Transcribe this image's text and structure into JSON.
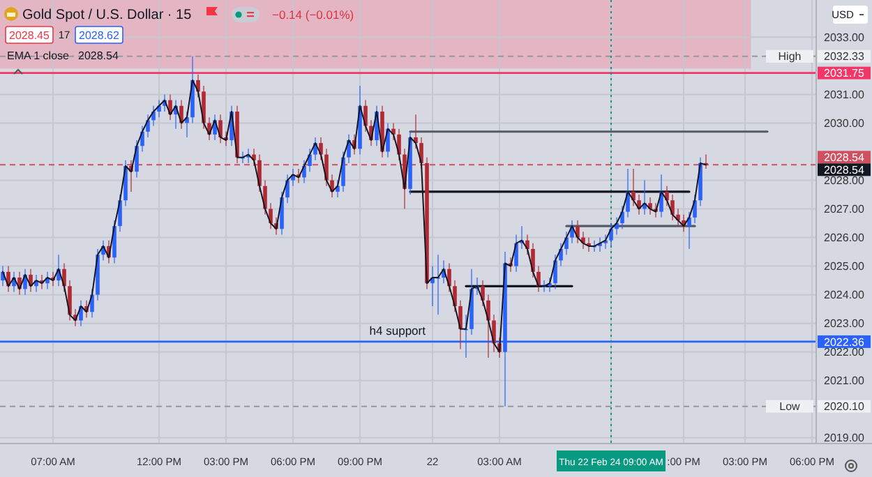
{
  "chart_data": {
    "type": "candlestick",
    "title": "Gold Spot / U.S. Dollar · 15",
    "annotations": [
      "−0.14 (−0.01%)",
      "2028.45",
      "17",
      "2028.62",
      "2028.54",
      "USD",
      {
        "text": "h4 support",
        "y": 2022.36
      },
      {
        "text": "High",
        "y": 2032.33
      },
      {
        "text": "Low",
        "y": 2020.1
      }
    ],
    "categories": [
      null,
      null,
      null,
      null,
      null,
      null,
      null,
      null,
      null,
      "07:00 AM",
      null,
      null,
      null,
      null,
      null,
      null,
      null,
      null,
      null,
      null,
      null,
      null,
      null,
      null,
      null,
      null,
      null,
      null,
      "12:00 PM",
      null,
      null,
      null,
      null,
      null,
      null,
      null,
      null,
      null,
      null,
      null,
      "03:00 PM",
      null,
      null,
      null,
      null,
      null,
      null,
      null,
      null,
      null,
      null,
      null,
      "06:00 PM",
      null,
      null,
      null,
      null,
      null,
      null,
      null,
      null,
      null,
      null,
      null,
      "09:00 PM",
      null,
      null,
      null,
      null,
      null,
      null,
      null,
      null,
      null,
      null,
      null,
      null,
      "22",
      null,
      null,
      null,
      null,
      null,
      null,
      null,
      null,
      null,
      null,
      null,
      "03:00 AM",
      null,
      null,
      null,
      null,
      null,
      null,
      null,
      null,
      null,
      null,
      null,
      null,
      null,
      null,
      null,
      null,
      null,
      null,
      null,
      "Thu 22 Feb 24   09:00 AM",
      null,
      null,
      null,
      null,
      null,
      null,
      null,
      null,
      null,
      null,
      null,
      null,
      ":00 PM",
      null,
      null,
      null,
      null,
      null,
      null,
      null,
      null,
      null,
      null,
      "03:00 PM",
      null,
      null,
      null,
      null,
      null,
      null,
      null,
      null,
      null,
      null,
      null,
      "06:00 PM"
    ],
    "ohlc": [
      [
        2024.5,
        2025.0,
        2024.3,
        2024.8
      ],
      [
        2024.8,
        2025.0,
        2024.1,
        2024.3
      ],
      [
        2024.3,
        2024.8,
        2024.1,
        2024.6
      ],
      [
        2024.6,
        2024.8,
        2024.0,
        2024.2
      ],
      [
        2024.2,
        2024.9,
        2024.0,
        2024.7
      ],
      [
        2024.7,
        2024.9,
        2024.1,
        2024.3
      ],
      [
        2024.3,
        2024.7,
        2024.1,
        2024.5
      ],
      [
        2024.5,
        2024.7,
        2024.2,
        2024.4
      ],
      [
        2024.4,
        2024.8,
        2024.2,
        2024.6
      ],
      [
        2024.6,
        2024.8,
        2024.3,
        2024.5
      ],
      [
        2024.5,
        2025.4,
        2024.3,
        2024.9
      ],
      [
        2024.9,
        2025.1,
        2024.1,
        2024.3
      ],
      [
        2024.3,
        2024.5,
        2023.1,
        2023.3
      ],
      [
        2023.3,
        2023.5,
        2022.9,
        2023.1
      ],
      [
        2023.1,
        2023.8,
        2022.9,
        2023.6
      ],
      [
        2023.6,
        2023.8,
        2023.2,
        2023.4
      ],
      [
        2023.4,
        2024.2,
        2023.2,
        2024.0
      ],
      [
        2024.0,
        2025.6,
        2023.8,
        2025.4
      ],
      [
        2025.4,
        2025.9,
        2025.2,
        2025.7
      ],
      [
        2025.7,
        2025.9,
        2025.1,
        2025.3
      ],
      [
        2025.3,
        2026.6,
        2025.1,
        2026.4
      ],
      [
        2026.4,
        2027.5,
        2026.2,
        2027.3
      ],
      [
        2027.3,
        2028.7,
        2027.1,
        2028.5
      ],
      [
        2028.5,
        2028.7,
        2027.6,
        2028.3
      ],
      [
        2028.3,
        2029.4,
        2028.1,
        2029.2
      ],
      [
        2029.2,
        2029.9,
        2029.0,
        2029.7
      ],
      [
        2029.7,
        2030.3,
        2029.5,
        2030.1
      ],
      [
        2030.1,
        2030.6,
        2029.9,
        2030.4
      ],
      [
        2030.4,
        2030.8,
        2030.2,
        2030.6
      ],
      [
        2030.6,
        2031.0,
        2030.4,
        2030.8
      ],
      [
        2030.8,
        2031.0,
        2030.1,
        2030.3
      ],
      [
        2030.3,
        2030.8,
        2029.8,
        2030.6
      ],
      [
        2030.6,
        2030.8,
        2029.8,
        2030.0
      ],
      [
        2030.0,
        2030.4,
        2029.5,
        2030.2
      ],
      [
        2030.2,
        2032.33,
        2030.0,
        2031.5
      ],
      [
        2031.5,
        2031.7,
        2030.9,
        2031.1
      ],
      [
        2031.1,
        2031.3,
        2029.8,
        2030.0
      ],
      [
        2030.0,
        2030.2,
        2029.4,
        2029.6
      ],
      [
        2029.6,
        2030.3,
        2029.4,
        2030.1
      ],
      [
        2030.1,
        2030.3,
        2029.3,
        2029.5
      ],
      [
        2029.5,
        2029.7,
        2029.2,
        2029.4
      ],
      [
        2029.4,
        2030.6,
        2029.2,
        2030.4
      ],
      [
        2030.4,
        2030.6,
        2028.6,
        2028.8
      ],
      [
        2028.8,
        2029.0,
        2028.6,
        2028.8
      ],
      [
        2028.8,
        2029.1,
        2028.6,
        2028.9
      ],
      [
        2028.9,
        2029.1,
        2028.5,
        2028.7
      ],
      [
        2028.7,
        2028.9,
        2027.6,
        2027.8
      ],
      [
        2027.8,
        2028.0,
        2026.8,
        2027.0
      ],
      [
        2027.0,
        2027.2,
        2026.3,
        2026.5
      ],
      [
        2026.5,
        2026.7,
        2026.1,
        2026.3
      ],
      [
        2026.3,
        2027.6,
        2026.1,
        2027.4
      ],
      [
        2027.4,
        2028.2,
        2027.2,
        2028.0
      ],
      [
        2028.0,
        2028.4,
        2027.8,
        2028.2
      ],
      [
        2028.2,
        2028.4,
        2027.9,
        2028.1
      ],
      [
        2028.1,
        2028.7,
        2027.9,
        2028.5
      ],
      [
        2028.5,
        2029.1,
        2028.3,
        2028.9
      ],
      [
        2028.9,
        2029.5,
        2028.7,
        2029.3
      ],
      [
        2029.3,
        2029.5,
        2028.7,
        2028.9
      ],
      [
        2028.9,
        2029.1,
        2027.8,
        2028.0
      ],
      [
        2028.0,
        2028.2,
        2027.4,
        2027.6
      ],
      [
        2027.6,
        2028.0,
        2027.4,
        2027.8
      ],
      [
        2027.8,
        2029.0,
        2027.6,
        2028.8
      ],
      [
        2028.8,
        2029.6,
        2028.6,
        2029.4
      ],
      [
        2029.4,
        2029.6,
        2028.9,
        2029.1
      ],
      [
        2029.1,
        2031.3,
        2028.9,
        2030.6
      ],
      [
        2030.6,
        2030.8,
        2029.7,
        2029.9
      ],
      [
        2029.9,
        2030.1,
        2029.2,
        2029.4
      ],
      [
        2029.4,
        2030.6,
        2029.2,
        2030.4
      ],
      [
        2030.4,
        2030.6,
        2028.8,
        2029.0
      ],
      [
        2029.0,
        2030.0,
        2028.8,
        2029.8
      ],
      [
        2029.8,
        2030.0,
        2029.4,
        2029.6
      ],
      [
        2029.6,
        2029.8,
        2028.7,
        2028.9
      ],
      [
        2028.9,
        2029.1,
        2027.0,
        2027.7
      ],
      [
        2027.7,
        2029.7,
        2027.5,
        2029.5
      ],
      [
        2029.5,
        2030.3,
        2029.1,
        2029.3
      ],
      [
        2029.3,
        2029.5,
        2028.4,
        2028.6
      ],
      [
        2028.6,
        2028.8,
        2024.2,
        2024.4
      ],
      [
        2024.4,
        2025.0,
        2023.6,
        2024.6
      ],
      [
        2024.6,
        2025.4,
        2023.3,
        2024.6
      ],
      [
        2024.6,
        2025.2,
        2024.4,
        2024.9
      ],
      [
        2024.9,
        2025.1,
        2024.1,
        2024.3
      ],
      [
        2024.3,
        2024.5,
        2023.4,
        2023.6
      ],
      [
        2023.6,
        2023.8,
        2022.1,
        2022.8
      ],
      [
        2022.8,
        2023.3,
        2021.8,
        2022.8
      ],
      [
        2022.8,
        2024.9,
        2022.6,
        2024.2
      ],
      [
        2024.2,
        2024.6,
        2024.0,
        2024.3
      ],
      [
        2024.3,
        2024.5,
        2023.6,
        2023.8
      ],
      [
        2023.8,
        2024.0,
        2021.8,
        2023.1
      ],
      [
        2023.1,
        2023.3,
        2022.0,
        2022.3
      ],
      [
        2022.3,
        2022.5,
        2021.8,
        2022.0
      ],
      [
        2022.0,
        2025.5,
        2020.1,
        2025.1
      ],
      [
        2025.1,
        2025.3,
        2024.8,
        2025.0
      ],
      [
        2025.0,
        2026.1,
        2024.8,
        2025.8
      ],
      [
        2025.8,
        2026.4,
        2025.6,
        2025.9
      ],
      [
        2025.9,
        2026.1,
        2025.4,
        2025.6
      ],
      [
        2025.6,
        2025.8,
        2024.6,
        2024.8
      ],
      [
        2024.8,
        2025.0,
        2024.1,
        2024.3
      ],
      [
        2024.3,
        2024.5,
        2024.1,
        2024.3
      ],
      [
        2024.3,
        2024.6,
        2024.1,
        2024.4
      ],
      [
        2024.4,
        2025.4,
        2024.2,
        2025.2
      ],
      [
        2025.2,
        2025.8,
        2025.0,
        2025.6
      ],
      [
        2025.6,
        2026.2,
        2025.4,
        2026.0
      ],
      [
        2026.0,
        2026.6,
        2025.8,
        2026.4
      ],
      [
        2026.4,
        2026.6,
        2025.8,
        2026.0
      ],
      [
        2026.0,
        2026.2,
        2025.6,
        2025.8
      ],
      [
        2025.8,
        2026.0,
        2025.5,
        2025.7
      ],
      [
        2025.7,
        2025.9,
        2025.5,
        2025.7
      ],
      [
        2025.7,
        2026.0,
        2025.5,
        2025.8
      ],
      [
        2025.8,
        2026.1,
        2025.6,
        2025.9
      ],
      [
        2025.9,
        2026.5,
        2025.7,
        2026.3
      ],
      [
        2026.3,
        2026.7,
        2026.1,
        2026.5
      ],
      [
        2026.5,
        2027.1,
        2026.3,
        2026.9
      ],
      [
        2026.9,
        2028.4,
        2026.7,
        2027.6
      ],
      [
        2027.6,
        2028.4,
        2027.1,
        2027.3
      ],
      [
        2027.3,
        2027.5,
        2026.8,
        2027.0
      ],
      [
        2027.0,
        2028.0,
        2026.8,
        2027.2
      ],
      [
        2027.2,
        2027.4,
        2026.8,
        2027.0
      ],
      [
        2027.0,
        2027.2,
        2026.7,
        2026.9
      ],
      [
        2026.9,
        2028.2,
        2026.7,
        2027.6
      ],
      [
        2027.6,
        2027.8,
        2027.1,
        2027.3
      ],
      [
        2027.3,
        2027.5,
        2026.6,
        2026.8
      ],
      [
        2026.8,
        2027.0,
        2026.4,
        2026.6
      ],
      [
        2026.6,
        2026.8,
        2026.2,
        2026.4
      ],
      [
        2026.4,
        2026.9,
        2025.6,
        2026.7
      ],
      [
        2026.7,
        2027.5,
        2026.5,
        2027.3
      ],
      [
        2027.3,
        2028.8,
        2027.1,
        2028.6
      ],
      [
        2028.6,
        2028.9,
        2028.4,
        2028.54
      ],
      null,
      null,
      null,
      null,
      null,
      null,
      null,
      null,
      null,
      null,
      null,
      null,
      null,
      null,
      null,
      null,
      null,
      null,
      null
    ],
    "series": [
      {
        "type": "line",
        "name": "EMA 1 close",
        "color": "#131722",
        "values": [
          2024.8,
          2024.3,
          2024.6,
          2024.2,
          2024.7,
          2024.3,
          2024.5,
          2024.4,
          2024.6,
          2024.5,
          2024.9,
          2024.3,
          2023.3,
          2023.1,
          2023.6,
          2023.4,
          2024.0,
          2025.4,
          2025.7,
          2025.3,
          2026.4,
          2027.3,
          2028.5,
          2028.3,
          2029.2,
          2029.7,
          2030.1,
          2030.4,
          2030.6,
          2030.8,
          2030.3,
          2030.6,
          2030.0,
          2030.2,
          2031.5,
          2031.1,
          2030.0,
          2029.6,
          2030.1,
          2029.5,
          2029.4,
          2030.4,
          2028.8,
          2028.8,
          2028.9,
          2028.7,
          2027.8,
          2027.0,
          2026.5,
          2026.3,
          2027.4,
          2028.0,
          2028.2,
          2028.1,
          2028.5,
          2028.9,
          2029.3,
          2028.9,
          2028.0,
          2027.6,
          2027.8,
          2028.8,
          2029.4,
          2029.1,
          2030.6,
          2029.9,
          2029.4,
          2030.4,
          2029.0,
          2029.8,
          2029.6,
          2028.9,
          2027.7,
          2029.5,
          2029.3,
          2028.6,
          2024.4,
          2024.6,
          2024.6,
          2024.9,
          2024.3,
          2023.6,
          2022.8,
          2022.8,
          2024.2,
          2024.3,
          2023.8,
          2023.1,
          2022.3,
          2022.0,
          2025.1,
          2025.0,
          2025.8,
          2025.9,
          2025.6,
          2024.8,
          2024.3,
          2024.3,
          2024.4,
          2025.2,
          2025.6,
          2026.0,
          2026.4,
          2026.0,
          2025.8,
          2025.7,
          2025.7,
          2025.8,
          2025.9,
          2026.3,
          2026.5,
          2026.9,
          2027.6,
          2027.3,
          2027.0,
          2027.2,
          2027.0,
          2026.9,
          2027.6,
          2027.3,
          2026.8,
          2026.6,
          2026.4,
          2026.7,
          2027.3,
          2028.6,
          2028.54,
          null,
          null,
          null,
          null,
          null,
          null,
          null,
          null,
          null,
          null,
          null,
          null,
          null,
          null,
          null,
          null,
          null,
          null,
          null
        ]
      },
      {
        "type": "line",
        "color": "#555a66",
        "values": [
          null,
          null,
          null,
          null,
          null,
          null,
          null,
          null,
          null,
          null,
          null,
          null,
          null,
          null,
          null,
          null,
          null,
          null,
          null,
          null,
          null,
          null,
          null,
          null,
          null,
          null,
          null,
          null,
          null,
          null,
          null,
          null,
          null,
          null,
          null,
          null,
          null,
          null,
          null,
          null,
          null,
          null,
          null,
          null,
          null,
          null,
          null,
          null,
          null,
          null,
          null,
          null,
          null,
          null,
          null,
          null,
          null,
          null,
          null,
          null,
          null,
          null,
          null,
          null,
          null,
          null,
          null,
          null,
          null,
          null,
          null,
          null,
          null,
          2029.7,
          2029.7,
          2029.7,
          2029.7,
          2029.7,
          2029.7,
          2029.7,
          2029.7,
          2029.7,
          2029.7,
          2029.7,
          2029.7,
          2029.7,
          2029.7,
          2029.7,
          2029.7,
          2029.7,
          2029.7,
          2029.7,
          2029.7,
          2029.7,
          2029.7,
          2029.7,
          2029.7,
          2029.7,
          2029.7,
          2029.7,
          2029.7,
          2029.7,
          2029.7,
          2029.7,
          2029.7,
          2029.7,
          2029.7,
          2029.7,
          2029.7,
          2029.7,
          2029.7,
          2029.7,
          2029.7,
          2029.7,
          2029.7,
          2029.7,
          2029.7,
          2029.7,
          2029.7,
          2029.7,
          2029.7,
          2029.7,
          2029.7,
          2029.7,
          2029.7,
          2029.7,
          2029.7,
          2029.7,
          2029.7,
          2029.7,
          2029.7,
          2029.7,
          2029.7,
          2029.7,
          2029.7,
          2029.7,
          2029.7,
          2029.7,
          null,
          null,
          null,
          null,
          null,
          null,
          null,
          null
        ]
      },
      {
        "type": "line",
        "color": "#131722",
        "values": [
          null,
          null,
          null,
          null,
          null,
          null,
          null,
          null,
          null,
          null,
          null,
          null,
          null,
          null,
          null,
          null,
          null,
          null,
          null,
          null,
          null,
          null,
          null,
          null,
          null,
          null,
          null,
          null,
          null,
          null,
          null,
          null,
          null,
          null,
          null,
          null,
          null,
          null,
          null,
          null,
          null,
          null,
          null,
          null,
          null,
          null,
          null,
          null,
          null,
          null,
          null,
          null,
          null,
          null,
          null,
          null,
          null,
          null,
          null,
          null,
          null,
          null,
          null,
          null,
          null,
          null,
          null,
          null,
          null,
          null,
          null,
          null,
          null,
          2027.6,
          2027.6,
          2027.6,
          2027.6,
          2027.6,
          2027.6,
          2027.6,
          2027.6,
          2027.6,
          2027.6,
          2027.6,
          2027.6,
          2027.6,
          2027.6,
          2027.6,
          2027.6,
          2027.6,
          2027.6,
          2027.6,
          2027.6,
          2027.6,
          2027.6,
          2027.6,
          2027.6,
          2027.6,
          2027.6,
          2027.6,
          2027.6,
          2027.6,
          2027.6,
          2027.6,
          2027.6,
          2027.6,
          2027.6,
          2027.6,
          2027.6,
          2027.6,
          2027.6,
          2027.6,
          2027.6,
          2027.6,
          2027.6,
          2027.6,
          2027.6,
          2027.6,
          2027.6,
          2027.6,
          2027.6,
          2027.6,
          2027.6,
          2027.6,
          null,
          null,
          null,
          null,
          null,
          null,
          null,
          null,
          null,
          null,
          null,
          null,
          null,
          null,
          null,
          null,
          null,
          null,
          null,
          null,
          null,
          null
        ]
      },
      {
        "type": "line",
        "color": "#555a66",
        "values": [
          null,
          null,
          null,
          null,
          null,
          null,
          null,
          null,
          null,
          null,
          null,
          null,
          null,
          null,
          null,
          null,
          null,
          null,
          null,
          null,
          null,
          null,
          null,
          null,
          null,
          null,
          null,
          null,
          null,
          null,
          null,
          null,
          null,
          null,
          null,
          null,
          null,
          null,
          null,
          null,
          null,
          null,
          null,
          null,
          null,
          null,
          null,
          null,
          null,
          null,
          null,
          null,
          null,
          null,
          null,
          null,
          null,
          null,
          null,
          null,
          null,
          null,
          null,
          null,
          null,
          null,
          null,
          null,
          null,
          null,
          null,
          null,
          null,
          null,
          null,
          null,
          null,
          null,
          null,
          null,
          null,
          null,
          null,
          null,
          null,
          null,
          null,
          null,
          null,
          null,
          null,
          null,
          null,
          null,
          null,
          null,
          null,
          null,
          null,
          null,
          null,
          2026.4,
          2026.4,
          2026.4,
          2026.4,
          2026.4,
          2026.4,
          2026.4,
          2026.4,
          2026.4,
          2026.4,
          2026.4,
          2026.4,
          2026.4,
          2026.4,
          2026.4,
          2026.4,
          2026.4,
          2026.4,
          2026.4,
          2026.4,
          2026.4,
          2026.4,
          2026.4,
          2026.4,
          null,
          null,
          null,
          null,
          null,
          null,
          null,
          null,
          null,
          null,
          null,
          null,
          null,
          null,
          null,
          null,
          null,
          null,
          null,
          null,
          null
        ]
      },
      {
        "type": "line",
        "color": "#131722",
        "values": [
          null,
          null,
          null,
          null,
          null,
          null,
          null,
          null,
          null,
          null,
          null,
          null,
          null,
          null,
          null,
          null,
          null,
          null,
          null,
          null,
          null,
          null,
          null,
          null,
          null,
          null,
          null,
          null,
          null,
          null,
          null,
          null,
          null,
          null,
          null,
          null,
          null,
          null,
          null,
          null,
          null,
          null,
          null,
          null,
          null,
          null,
          null,
          null,
          null,
          null,
          null,
          null,
          null,
          null,
          null,
          null,
          null,
          null,
          null,
          null,
          null,
          null,
          null,
          null,
          null,
          null,
          null,
          null,
          null,
          null,
          null,
          null,
          null,
          null,
          null,
          null,
          null,
          null,
          null,
          null,
          null,
          null,
          null,
          2024.3,
          2024.3,
          2024.3,
          2024.3,
          2024.3,
          2024.3,
          2024.3,
          2024.3,
          2024.3,
          2024.3,
          2024.3,
          2024.3,
          2024.3,
          2024.3,
          2024.3,
          2024.3,
          2024.3,
          2024.3,
          2024.3,
          2024.3,
          null,
          null,
          null,
          null,
          null,
          null,
          null,
          null,
          null,
          null,
          null,
          null,
          null,
          null,
          null,
          null,
          null,
          null,
          null,
          null,
          null,
          null,
          null,
          null,
          null,
          null,
          null,
          null,
          null,
          null,
          null,
          null,
          null,
          null,
          null,
          null,
          null,
          null,
          null,
          null,
          null,
          null,
          null
        ]
      }
    ],
    "ylim": [
      2018.8,
      2034.3
    ],
    "yticks": [
      {
        "value": 2019,
        "label": "2019.00"
      },
      {
        "value": 2021,
        "label": "2021.00"
      },
      {
        "value": 2022,
        "label": "2022.00"
      },
      {
        "value": 2023,
        "label": "2023.00"
      },
      {
        "value": 2024,
        "label": "2024.00"
      },
      {
        "value": 2025,
        "label": "2025.00"
      },
      {
        "value": 2026,
        "label": "2026.00"
      },
      {
        "value": 2027,
        "label": "2027.00"
      },
      {
        "value": 2028,
        "label": "2028.00"
      },
      {
        "value": 2030,
        "label": "2030.00"
      },
      {
        "value": 2031,
        "label": "2031.00"
      },
      {
        "value": 2033,
        "label": "2033.00"
      }
    ],
    "grid": true,
    "bands": [
      {
        "axis": "y",
        "from": 2031.9,
        "to": 2034.3,
        "color": "#e8a9b8"
      }
    ],
    "ref_lines": [
      {
        "axis": "y",
        "value": 2031.75,
        "label": "2031.75",
        "color": "#f23667",
        "line_style": "solid"
      },
      {
        "axis": "y",
        "value": 2022.36,
        "label": "2022.36",
        "color": "#2962ff",
        "line_style": "solid"
      },
      {
        "axis": "y",
        "value": 2032.33,
        "label": "2032.33",
        "color": "#9598a1",
        "line_style": "dashed"
      },
      {
        "axis": "y",
        "value": 2020.1,
        "label": "2020.10",
        "color": "#9598a1",
        "line_style": "dashed"
      },
      {
        "axis": "y",
        "value": 2028.54,
        "label": "2028.54",
        "color": "#d05060",
        "line_style": "dashed"
      },
      {
        "axis": "x",
        "value": "Thu 22 Feb 24   09:00 AM",
        "color": "#089981",
        "line_style": "dotted"
      }
    ]
  }
}
